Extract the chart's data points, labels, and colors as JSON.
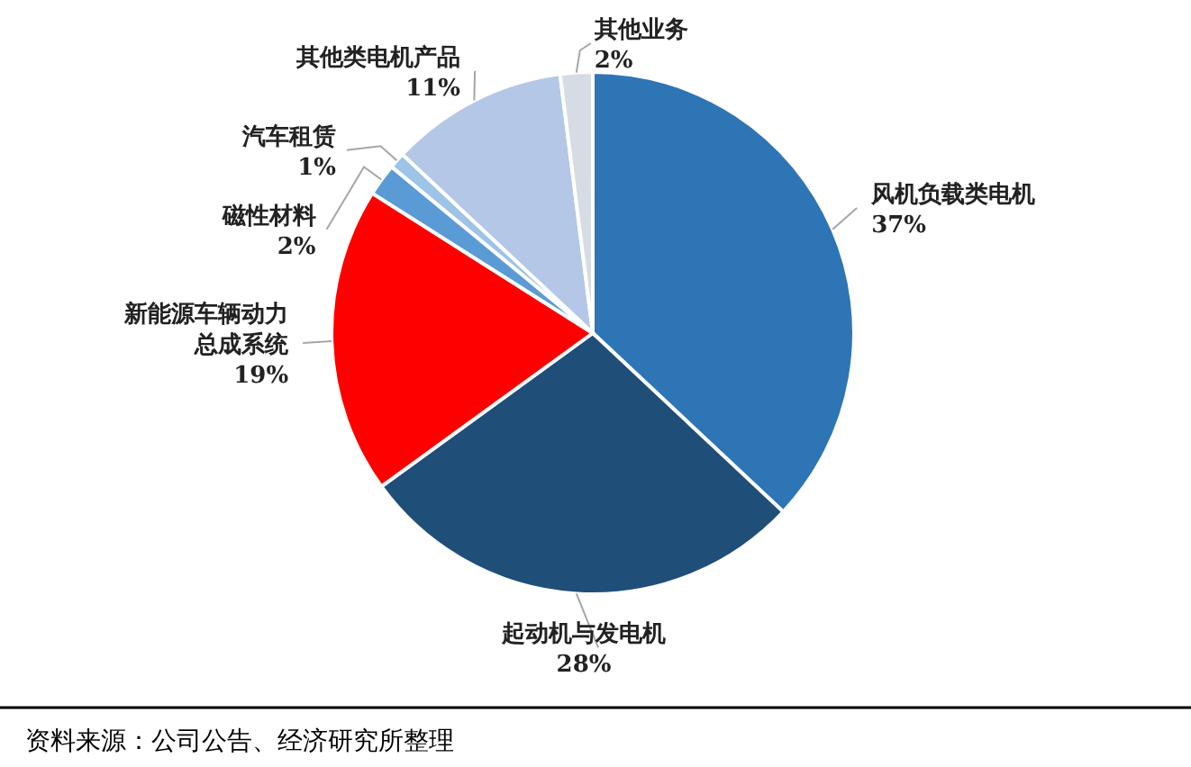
{
  "chart_data": {
    "type": "pie",
    "categories": [
      "风机负载类电机",
      "起动机与发电机",
      "新能源车辆动力总成系统",
      "磁性材料",
      "汽车租赁",
      "其他类电机产品",
      "其他业务"
    ],
    "values": [
      37,
      28,
      19,
      2,
      1,
      11,
      2
    ],
    "value_labels": [
      "37%",
      "28%",
      "19%",
      "2%",
      "1%",
      "11%",
      "2%"
    ],
    "colors": [
      "#2e75b6",
      "#1f4e79",
      "#ff0000",
      "#5b9bd5",
      "#9dc3e6",
      "#b4c7e7",
      "#d6dce4"
    ],
    "annotations": [
      "资料来源：公司公告、经济研究所整理"
    ]
  }
}
